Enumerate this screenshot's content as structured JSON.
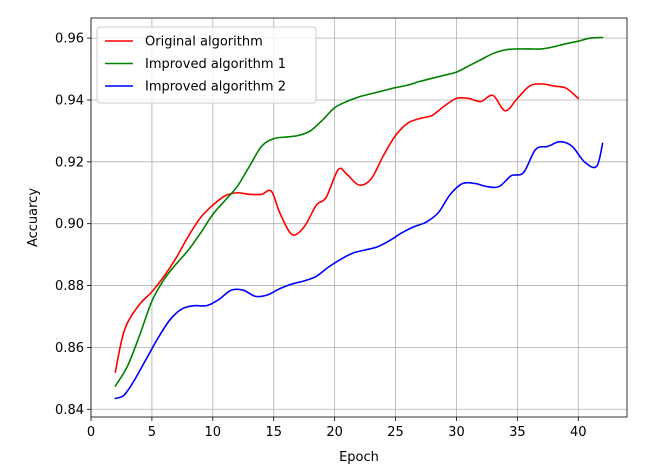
{
  "chart_data": {
    "type": "line",
    "title": "",
    "xlabel": "Epoch",
    "ylabel": "Accuarcy",
    "xlim": [
      0,
      44
    ],
    "ylim": [
      0.8375,
      0.9665
    ],
    "xticks": [
      0,
      5,
      10,
      15,
      20,
      25,
      30,
      35,
      40
    ],
    "xtick_labels": [
      "0",
      "5",
      "10",
      "15",
      "20",
      "25",
      "30",
      "35",
      "40"
    ],
    "yticks": [
      0.84,
      0.86,
      0.88,
      0.9,
      0.92,
      0.94,
      0.96
    ],
    "ytick_labels": [
      "0.84",
      "0.86",
      "0.88",
      "0.90",
      "0.92",
      "0.94",
      "0.96"
    ],
    "grid": true,
    "legend_position": "upper-left",
    "series": [
      {
        "name": "Original algorithm",
        "color": "#ff0000",
        "x": [
          2,
          2.5,
          3,
          4,
          5,
          6,
          7,
          8,
          9,
          10,
          11,
          12,
          13,
          14,
          14.8,
          15.5,
          16.5,
          17.5,
          18.5,
          19.3,
          20.3,
          21,
          22,
          23,
          24,
          25,
          26,
          27,
          28,
          29,
          30,
          31,
          32,
          33,
          34,
          35,
          36,
          37,
          38,
          39,
          40
        ],
        "values": [
          0.852,
          0.862,
          0.868,
          0.874,
          0.878,
          0.883,
          0.889,
          0.896,
          0.902,
          0.906,
          0.909,
          0.91,
          0.9095,
          0.9095,
          0.9105,
          0.9035,
          0.8965,
          0.899,
          0.906,
          0.9085,
          0.9175,
          0.916,
          0.9125,
          0.9145,
          0.922,
          0.9285,
          0.9325,
          0.934,
          0.935,
          0.938,
          0.9405,
          0.9405,
          0.9395,
          0.9415,
          0.9365,
          0.9405,
          0.9445,
          0.9452,
          0.9445,
          0.9438,
          0.9405
        ]
      },
      {
        "name": "Improved algorithm 1",
        "color": "#008000",
        "x": [
          2,
          3,
          4,
          5,
          6,
          7,
          8,
          9,
          10,
          11,
          12,
          13,
          14,
          15,
          16,
          17,
          18,
          19,
          20,
          21,
          22,
          23,
          24,
          25,
          26,
          27,
          28,
          29,
          30,
          31,
          32,
          33,
          34,
          35,
          36,
          37,
          38,
          39,
          40,
          41,
          42
        ],
        "values": [
          0.8475,
          0.854,
          0.864,
          0.875,
          0.882,
          0.887,
          0.8915,
          0.897,
          0.903,
          0.9075,
          0.912,
          0.9185,
          0.925,
          0.9275,
          0.928,
          0.9285,
          0.93,
          0.9335,
          0.9375,
          0.9395,
          0.941,
          0.942,
          0.943,
          0.944,
          0.9448,
          0.946,
          0.947,
          0.948,
          0.949,
          0.951,
          0.953,
          0.955,
          0.9562,
          0.9565,
          0.9565,
          0.9565,
          0.9572,
          0.9582,
          0.959,
          0.96,
          0.9602
        ]
      },
      {
        "name": "Improved algorithm 2",
        "color": "#0000ff",
        "x": [
          2,
          2.7,
          3.5,
          4.5,
          5.5,
          6.5,
          7.5,
          8.5,
          9.5,
          10.5,
          11.5,
          12.5,
          13.5,
          14.5,
          15.5,
          16.5,
          17.5,
          18.5,
          19.5,
          20.5,
          21.5,
          22.5,
          23.5,
          24.5,
          25.5,
          26.5,
          27.5,
          28.5,
          29.5,
          30.5,
          31.5,
          32.5,
          33.5,
          34.5,
          35.5,
          36.5,
          37.5,
          38.5,
          39.5,
          40.5,
          41.5,
          42
        ],
        "values": [
          0.8435,
          0.8445,
          0.849,
          0.856,
          0.863,
          0.869,
          0.8725,
          0.8735,
          0.8735,
          0.8755,
          0.8785,
          0.8785,
          0.8765,
          0.877,
          0.879,
          0.8805,
          0.8815,
          0.883,
          0.886,
          0.8885,
          0.8905,
          0.8915,
          0.8925,
          0.8945,
          0.897,
          0.899,
          0.9005,
          0.9035,
          0.9095,
          0.913,
          0.913,
          0.912,
          0.912,
          0.9155,
          0.9165,
          0.924,
          0.925,
          0.9265,
          0.925,
          0.92,
          0.9185,
          0.926
        ]
      }
    ]
  }
}
